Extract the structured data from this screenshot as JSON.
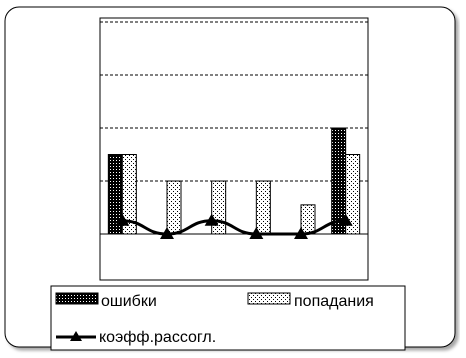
{
  "chart_data": {
    "type": "bar",
    "title": "",
    "xlabel": "",
    "ylabel": "",
    "ylim": [
      0,
      4
    ],
    "grid": true,
    "legend_position": "bottom",
    "categories": [
      "",
      "",
      "",
      "",
      "",
      ""
    ],
    "series": [
      {
        "name": "ошибки",
        "type": "bar",
        "pattern": "dense",
        "values": [
          1.5,
          0,
          0,
          0,
          0,
          2
        ]
      },
      {
        "name": "попадания",
        "type": "bar",
        "pattern": "dots",
        "values": [
          1.5,
          1,
          1,
          1,
          0.55,
          1.5
        ]
      },
      {
        "name": "коэфф.рассогл.",
        "type": "line",
        "marker": "triangle",
        "values": [
          0.25,
          0,
          0.25,
          0,
          0,
          0.25
        ]
      }
    ]
  }
}
